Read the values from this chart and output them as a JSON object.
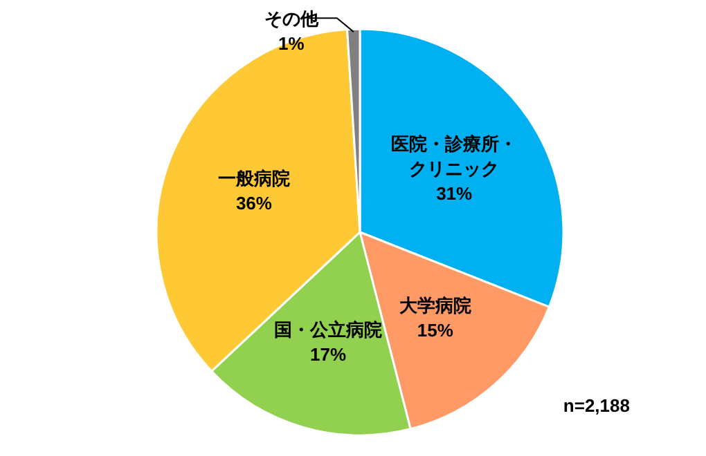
{
  "chart_data": {
    "type": "pie",
    "categories": [
      "医院・診療所・クリニック",
      "大学病院",
      "国・公立病院",
      "一般病院",
      "その他"
    ],
    "values": [
      31,
      15,
      17,
      36,
      1
    ],
    "value_labels": [
      "31%",
      "15%",
      "17%",
      "36%",
      "1%"
    ],
    "colors": [
      "#00b0f0",
      "#ff9966",
      "#92d050",
      "#ffc935",
      "#808080"
    ],
    "annotations": [
      "n=2,188"
    ]
  }
}
